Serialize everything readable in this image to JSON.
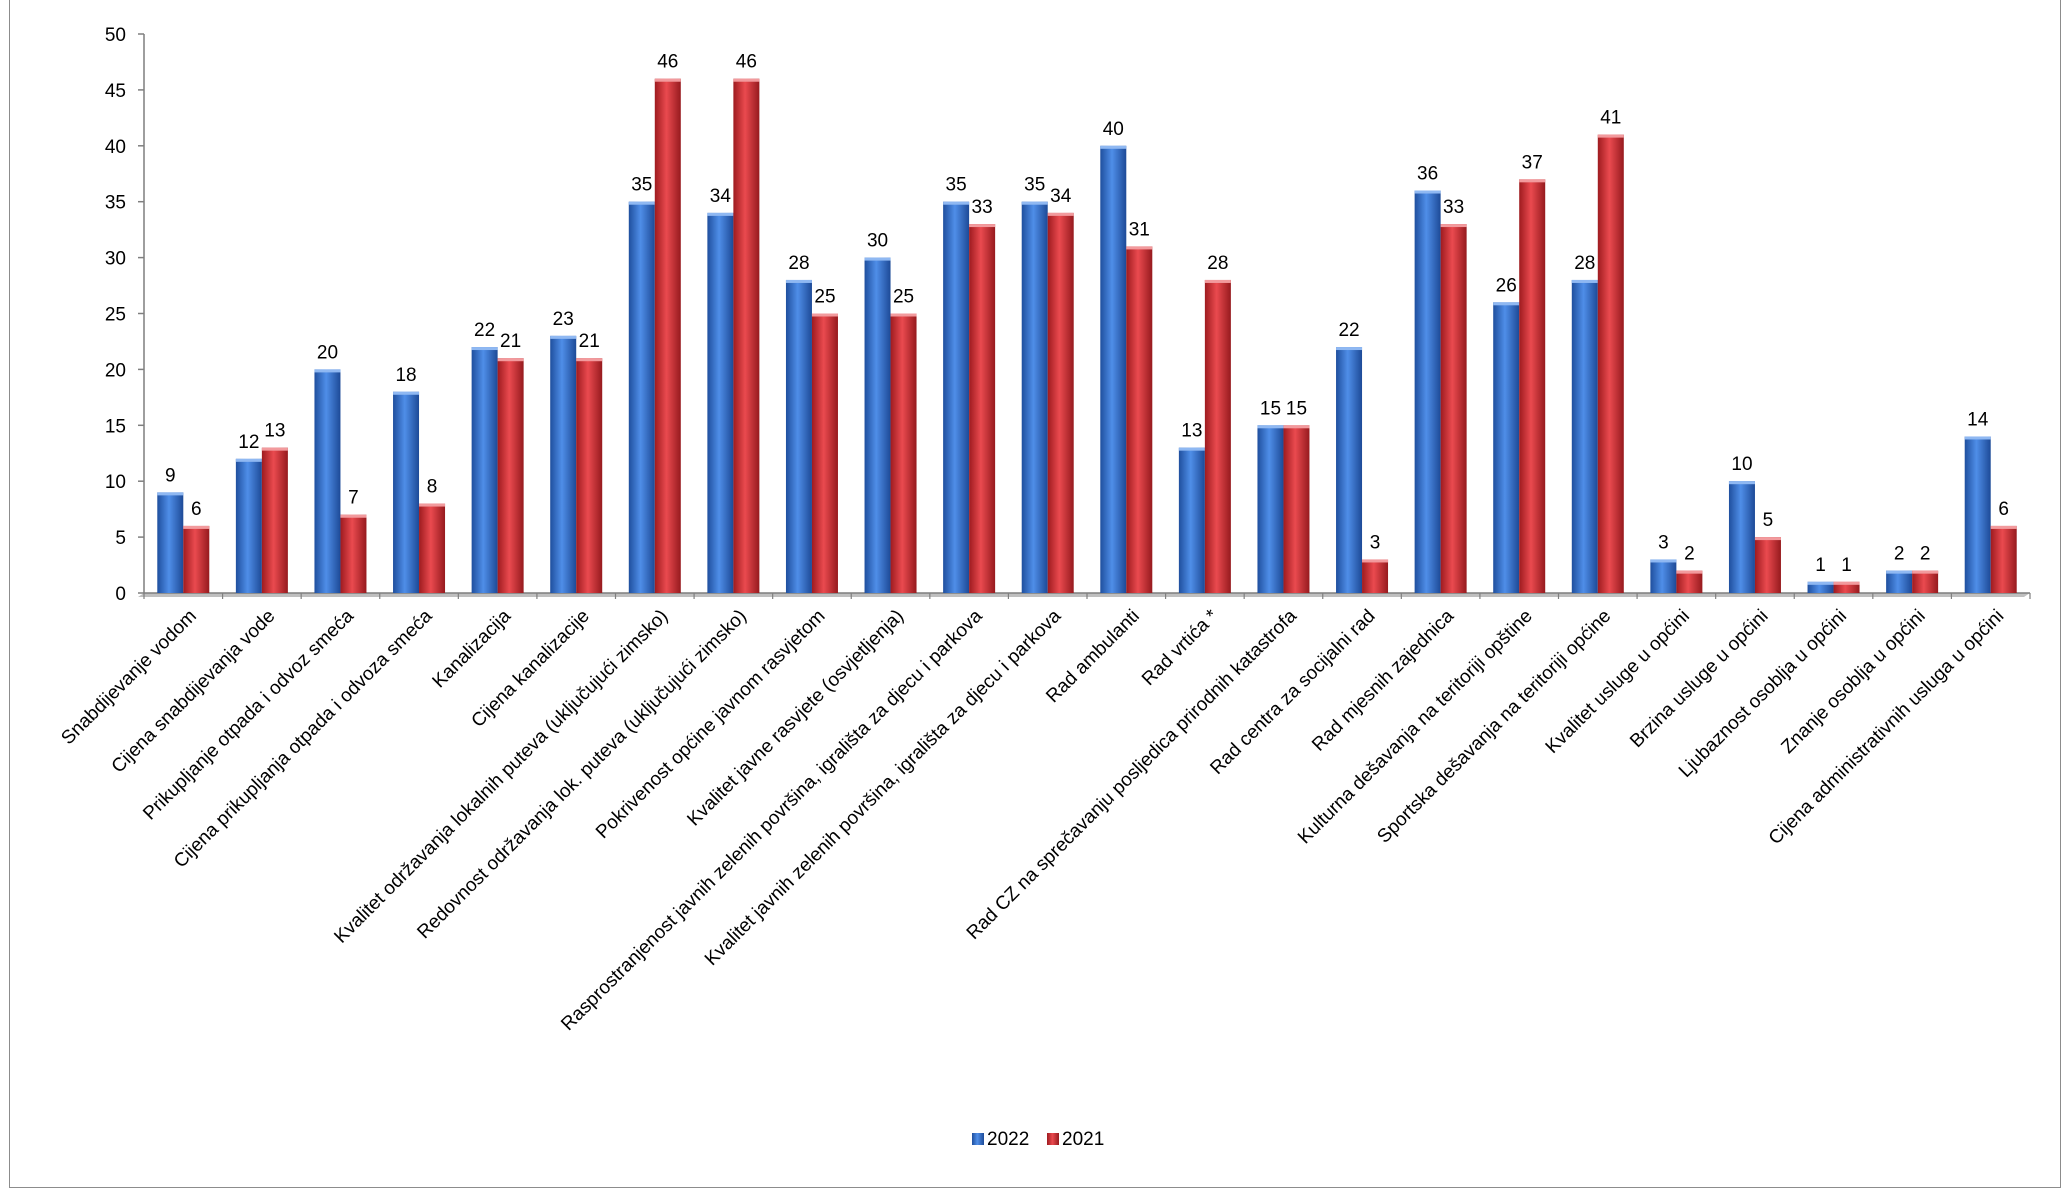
{
  "chart_data": {
    "type": "bar",
    "title": "",
    "xlabel": "",
    "ylabel": "",
    "ylim": [
      0,
      50
    ],
    "yticks": [
      0,
      5,
      10,
      15,
      20,
      25,
      30,
      35,
      40,
      45,
      50
    ],
    "grid": false,
    "legend_position": "bottom",
    "categories": [
      "Snabdijevanje vodom",
      "Cijena snabdijevanja vode",
      "Prikupljanje otpada i odvoz smeća",
      "Cijena prikupljanja otpada i odvoza smeća",
      "Kanalizacija",
      "Cijena kanalizacije",
      "Kvalitet održavanja lokalnih puteva (uključujući zimsko)",
      "Redovnost održavanja lok. puteva (uključujući zimsko)",
      "Pokrivenost općine javnom rasvjetom",
      "Kvalitet javne rasvjete (osvjetljenja)",
      "Rasprostranjenost javnih zelenih površina, igrališta za djecu i parkova",
      "Kvalitet javnih zelenih površina, igrališta za djecu i parkova",
      "Rad ambulanti",
      "Rad vrtića *",
      "Rad CZ na sprečavanju posljedica prirodnih katastrofa",
      "Rad centra za socijalni rad",
      "Rad mjesnih zajednica",
      "Kulturna dešavanja na teritoriji opštine",
      "Sportska dešavanja na teritoriji općine",
      "Kvalitet usluge u općini",
      "Brzina usluge u općini",
      "Ljubaznost osoblja u općini",
      "Znanje osoblja u općini",
      "Cijena administrativnih usluga u općini"
    ],
    "series": [
      {
        "name": "2022",
        "color": "#2e6fd0",
        "values": [
          9,
          12,
          20,
          18,
          22,
          23,
          35,
          34,
          28,
          30,
          35,
          35,
          40,
          13,
          15,
          22,
          36,
          26,
          28,
          3,
          10,
          1,
          2,
          14
        ]
      },
      {
        "name": "2021",
        "color": "#d9262c",
        "values": [
          6,
          13,
          7,
          8,
          21,
          21,
          46,
          46,
          25,
          25,
          33,
          34,
          31,
          28,
          15,
          3,
          33,
          37,
          41,
          2,
          5,
          1,
          2,
          6
        ]
      }
    ]
  }
}
